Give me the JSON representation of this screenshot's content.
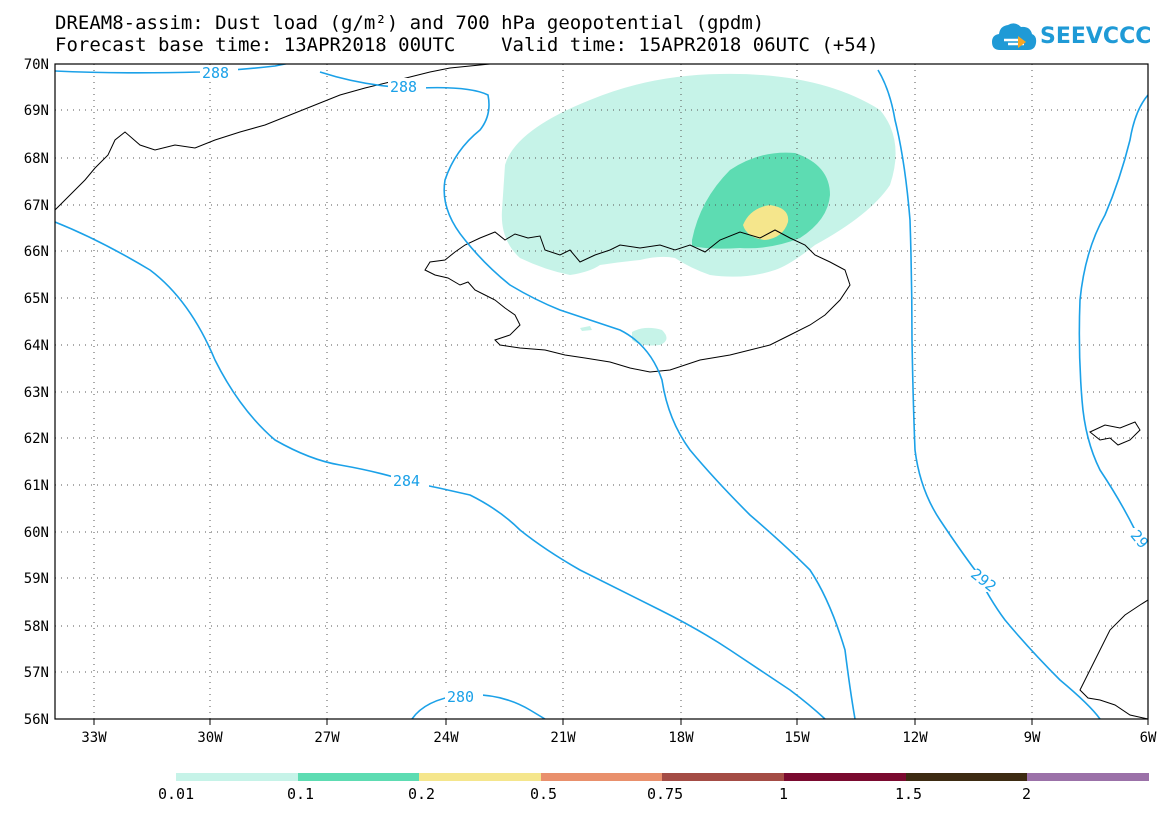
{
  "title": {
    "line1": "DREAM8-assim: Dust load (g/m²) and 700 hPa geopotential (gpdm)",
    "line2": "Forecast base time: 13APR2018 00UTC    Valid time: 15APR2018 06UTC (+54)"
  },
  "logo": {
    "text": "SEEVCCC",
    "icon": "cloud-icon",
    "color": "#1f9ad6"
  },
  "map": {
    "lat_labels": [
      "70N",
      "69N",
      "68N",
      "67N",
      "66N",
      "65N",
      "64N",
      "63N",
      "62N",
      "61N",
      "60N",
      "59N",
      "58N",
      "57N",
      "56N"
    ],
    "lon_labels": [
      "33W",
      "30W",
      "27W",
      "24W",
      "21W",
      "18W",
      "15W",
      "12W",
      "9W",
      "6W"
    ],
    "contour_labels": [
      "288",
      "288",
      "284",
      "292",
      "280",
      "29"
    ],
    "contour_color": "#1ba1e8"
  },
  "colorbar": {
    "labels": [
      "0.01",
      "0.1",
      "0.2",
      "0.5",
      "0.75",
      "1",
      "1.5",
      "2"
    ],
    "colors": [
      "#c6f3e8",
      "#5ddcb2",
      "#f5e68c",
      "#e9906c",
      "#a44c45",
      "#7a0a2f",
      "#3d2b12",
      "#9b71a8"
    ]
  },
  "dust_colors": {
    "light": "#c6f3e8",
    "medium": "#5ddcb2",
    "high": "#f5e68c"
  }
}
